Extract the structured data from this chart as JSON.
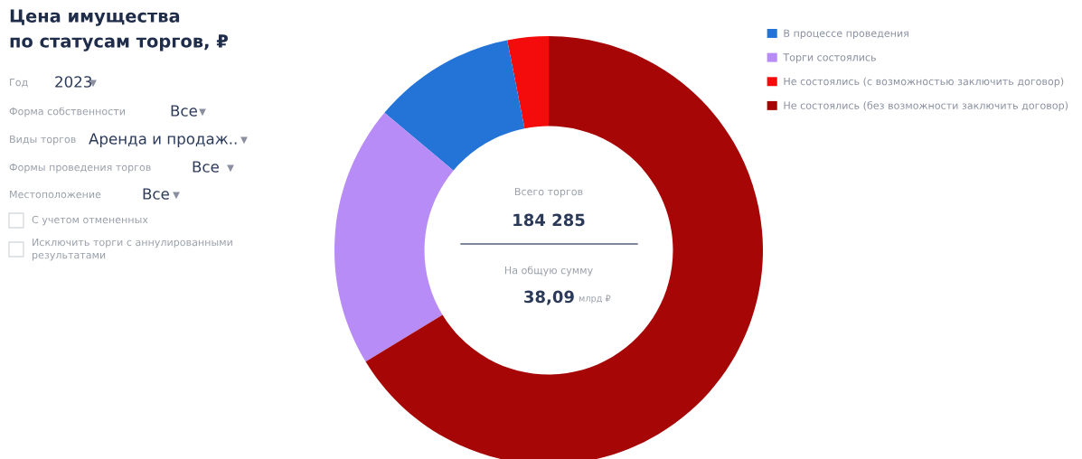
{
  "chart_data": {
    "type": "donut",
    "title": "Цена имущества\nпо статусам торгов, ₽",
    "categories": [
      "В процессе проведения",
      "Торги состоялись",
      "Не состоялись (с возможностью заключить договор)",
      "Не состоялись (без возможности заключить договор)"
    ],
    "values": [
      10.8,
      19.8,
      3.1,
      66.3
    ],
    "colors": [
      "#2474d8",
      "#b88cf7",
      "#f40b0b",
      "#a60606"
    ],
    "legend": "top right",
    "annotations": [
      "Год",
      "2023",
      "Форма собственности",
      "Все",
      "Виды торгов",
      "Аренда и продаж..",
      "Формы проведения торгов",
      "Все",
      "Местоположение",
      "Все",
      "С учетом отмененных",
      "Исключить торги с аннулированными\nрезультатами",
      "Всего торгов",
      "184 285",
      "На общую сумму",
      "38,09",
      "млрд ₽"
    ]
  }
}
